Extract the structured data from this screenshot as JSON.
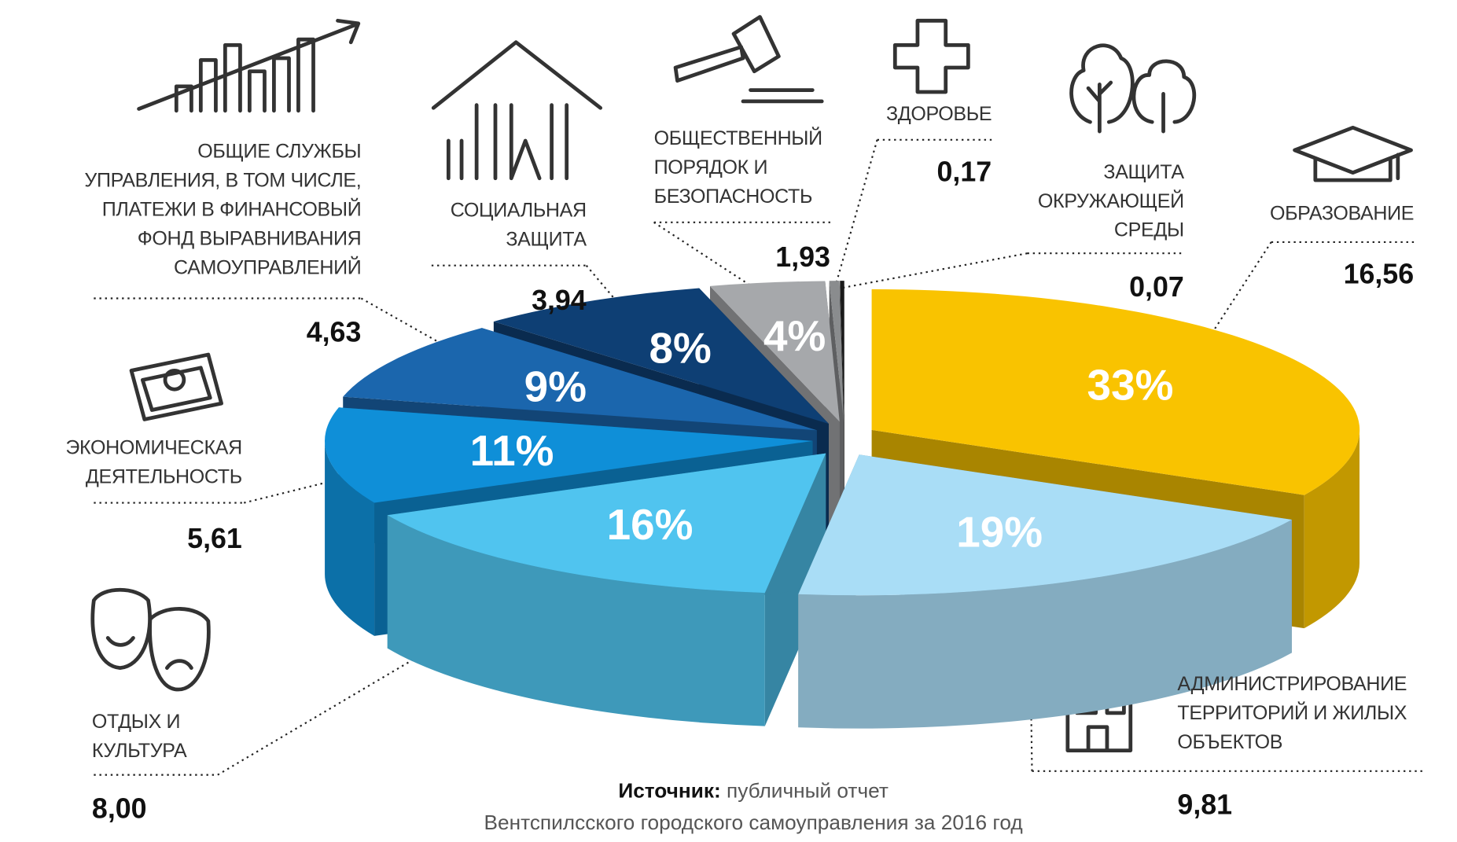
{
  "chart_data": {
    "type": "pie",
    "categories": [
      "ОБРАЗОВАНИЕ",
      "АДМИНИСТРИРОВАНИЕ ТЕРРИТОРИЙ И ЖИЛЫХ ОБЪЕКТОВ",
      "ОТДЫХ И КУЛЬТУРА",
      "ЭКОНОМИЧЕСКАЯ ДЕЯТЕЛЬНОСТЬ",
      "ОБЩИЕ СЛУЖБЫ УПРАВЛЕНИЯ, В ТОМ ЧИСЛЕ, ПЛАТЕЖИ В ФИНАНСОВЫЙ ФОНД ВЫРАВНИВАНИЯ САМОУПРАВЛЕНИЙ",
      "СОЦИАЛЬНАЯ ЗАЩИТА",
      "ОБЩЕСТВЕННЫЙ ПОРЯДОК И БЕЗОПАСНОСТЬ",
      "ЗДОРОВЬЕ",
      "ЗАЩИТА ОКРУЖАЮЩЕЙ СРЕДЫ"
    ],
    "values": [
      16.56,
      9.81,
      8,
      5.61,
      4.63,
      3.94,
      1.93,
      0.17,
      0.07
    ],
    "value_labels": [
      "16,56",
      "9,81",
      "8,00",
      "5,61",
      "4,63",
      "3,94",
      "1,93",
      "0,17",
      "0,07"
    ],
    "shares": [
      33,
      19,
      16,
      11,
      9,
      8,
      4,
      null,
      null
    ],
    "share_labels": [
      "33%",
      "19%",
      "16%",
      "11%",
      "9%",
      "8%",
      "4%",
      null,
      null
    ],
    "colors": [
      "#f9c300",
      "#a9ddf6",
      "#50c4ef",
      "#0f8fd8",
      "#1b66ad",
      "#0e3f74",
      "#a6a8ab",
      "#8a8c8e",
      "#1a1a1a"
    ],
    "source_label": "Источник:",
    "source": "публичный отчет Вентспилсского городского самоуправления за 2016 год"
  }
}
